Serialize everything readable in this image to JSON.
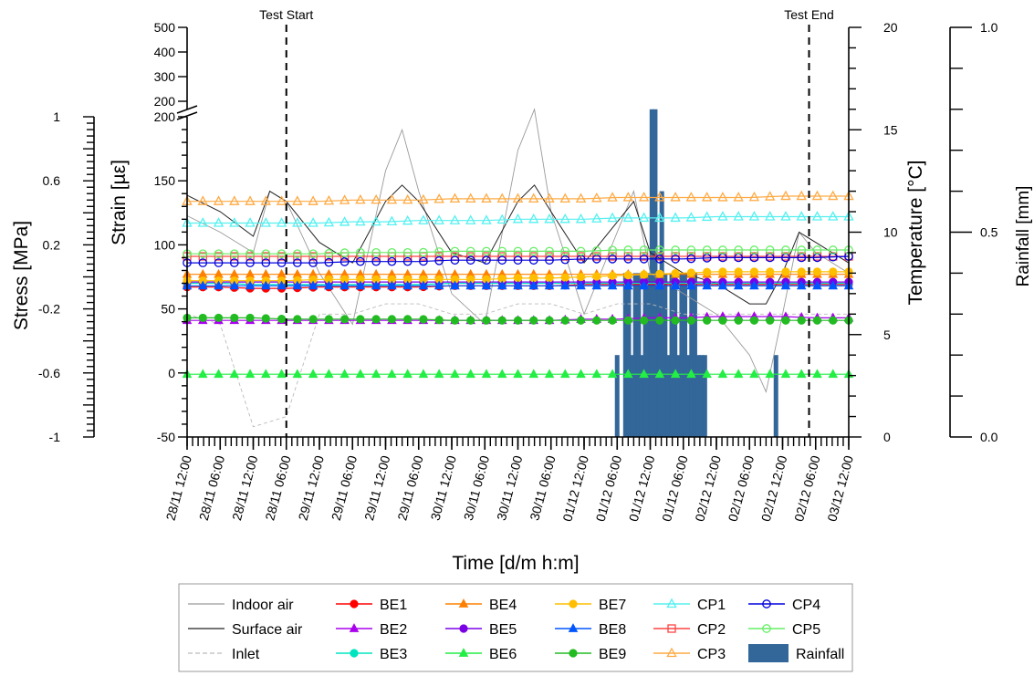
{
  "chart_data": {
    "type": "line",
    "xlabel": "Time [d/m h:m]",
    "y_stress_label": "Stress [MPa]",
    "y_strain_label": "Strain [µε]",
    "y_temp_label": "Temperature [°C]",
    "y_rain_label": "Rainfall [mm]",
    "x_ticks": [
      "28/11 12:00",
      "28/11 06:00",
      "28/11 12:00",
      "28/11 06:00",
      "29/11 12:00",
      "29/11 06:00",
      "29/11 12:00",
      "29/11 06:00",
      "30/11 12:00",
      "30/11 06:00",
      "30/11 12:00",
      "30/11 06:00",
      "01/12 12:00",
      "01/12 06:00",
      "01/12 12:00",
      "01/12 06:00",
      "02/12 12:00",
      "02/12 06:00",
      "02/12 12:00",
      "02/12 06:00",
      "03/12 12:00"
    ],
    "strain_ticks": [
      "-50",
      "0",
      "50",
      "100",
      "150",
      "200"
    ],
    "strain_break_ticks": [
      "200",
      "300",
      "400",
      "500"
    ],
    "stress_ticks": [
      "-1",
      "-0.6",
      "-0.2",
      "0.2",
      "0.6",
      "1"
    ],
    "temp_ticks": [
      "0",
      "5",
      "10",
      "15",
      "20"
    ],
    "rain_ticks": [
      "0.0",
      "0.5",
      "1.0"
    ],
    "strain_ylim": [
      -50,
      200
    ],
    "temp_ylim": [
      0,
      20
    ],
    "rain_ylim": [
      0,
      1.0
    ],
    "x_range": [
      0,
      20
    ],
    "annotations": [
      {
        "label": "Test Start",
        "x": 3.0
      },
      {
        "label": "Test End",
        "x": 18.8
      }
    ],
    "strain_series": [
      {
        "name": "BE1",
        "color": "#ff0000",
        "marker": "circle-filled",
        "values": [
          67,
          67,
          66,
          66,
          67,
          67,
          67,
          67,
          68,
          68,
          68,
          68,
          69,
          69,
          69,
          69,
          69,
          69,
          69,
          69,
          69
        ]
      },
      {
        "name": "BE2",
        "color": "#aa00ee",
        "marker": "triangle-filled",
        "values": [
          41,
          41,
          41,
          41,
          41,
          41,
          41,
          41,
          41,
          41,
          41,
          41,
          42,
          42,
          43,
          43,
          44,
          44,
          44,
          43,
          43
        ]
      },
      {
        "name": "BE3",
        "color": "#00e5c0",
        "marker": "circle-filled",
        "values": [
          70,
          70,
          69,
          69,
          69,
          69,
          69,
          69,
          70,
          70,
          70,
          70,
          70,
          70,
          70,
          70,
          70,
          70,
          70,
          70,
          70
        ]
      },
      {
        "name": "BE4",
        "color": "#ff8000",
        "marker": "triangle-filled",
        "values": [
          77,
          77,
          77,
          77,
          77,
          77,
          77,
          77,
          77,
          77,
          77,
          77,
          77,
          77,
          77,
          77,
          77,
          77,
          77,
          77,
          77
        ]
      },
      {
        "name": "BE5",
        "color": "#7a00e6",
        "marker": "circle-filled",
        "values": [
          71,
          71,
          71,
          71,
          71,
          71,
          71,
          71,
          71,
          71,
          71,
          71,
          71,
          71,
          71,
          71,
          71,
          71,
          71,
          71,
          71
        ]
      },
      {
        "name": "BE6",
        "color": "#22ee44",
        "marker": "triangle-filled",
        "values": [
          -1,
          -1,
          -1,
          -1,
          -1,
          -1,
          -1,
          -1,
          -1,
          -1,
          -1,
          -1,
          -1,
          -1,
          -1,
          -1,
          -1,
          -1,
          -1,
          -1,
          -1
        ]
      },
      {
        "name": "BE7",
        "color": "#ffbf00",
        "marker": "circle-filled",
        "values": [
          72,
          72,
          72,
          72,
          73,
          73,
          73,
          73,
          73,
          73,
          74,
          74,
          75,
          76,
          77,
          78,
          79,
          79,
          79,
          79,
          79
        ]
      },
      {
        "name": "BE8",
        "color": "#0055ff",
        "marker": "triangle-filled",
        "values": [
          68,
          68,
          68,
          68,
          68,
          68,
          68,
          68,
          68,
          68,
          68,
          68,
          68,
          68,
          68,
          68,
          68,
          68,
          68,
          68,
          68
        ]
      },
      {
        "name": "BE9",
        "color": "#22bb22",
        "marker": "circle-filled",
        "values": [
          43,
          43,
          43,
          42,
          42,
          42,
          42,
          42,
          41,
          41,
          41,
          41,
          41,
          41,
          41,
          41,
          41,
          41,
          41,
          41,
          41
        ]
      },
      {
        "name": "CP1",
        "color": "#55f0f0",
        "marker": "triangle-open",
        "values": [
          117,
          117,
          117,
          117,
          117,
          118,
          118,
          119,
          119,
          119,
          120,
          120,
          120,
          121,
          121,
          121,
          122,
          122,
          122,
          122,
          122
        ]
      },
      {
        "name": "CP2",
        "color": "#ff4444",
        "marker": "square-open",
        "values": [
          91,
          91,
          91,
          91,
          91,
          91,
          91,
          91,
          91,
          91,
          91,
          91,
          91,
          91,
          91,
          91,
          91,
          91,
          91,
          91,
          91
        ]
      },
      {
        "name": "CP3",
        "color": "#ffaa44",
        "marker": "triangle-open",
        "values": [
          134,
          134,
          134,
          134,
          134,
          135,
          135,
          135,
          136,
          136,
          136,
          136,
          136,
          137,
          137,
          137,
          137,
          137,
          138,
          138,
          138
        ]
      },
      {
        "name": "CP4",
        "color": "#0000dd",
        "marker": "circle-open",
        "values": [
          86,
          86,
          86,
          86,
          86,
          87,
          87,
          87,
          88,
          88,
          88,
          88,
          89,
          89,
          89,
          89,
          90,
          90,
          90,
          90,
          91
        ]
      },
      {
        "name": "CP5",
        "color": "#66ee66",
        "marker": "circle-open",
        "values": [
          93,
          93,
          93,
          93,
          93,
          94,
          94,
          94,
          95,
          95,
          95,
          95,
          95,
          96,
          96,
          96,
          96,
          96,
          96,
          96,
          96
        ]
      }
    ],
    "temperature_series": [
      {
        "name": "Indoor air",
        "color": "#999999",
        "x": [
          0,
          1,
          2,
          2.5,
          3,
          4,
          5,
          6,
          6.5,
          7,
          8,
          9,
          10,
          10.5,
          11,
          12,
          13,
          13.5,
          14,
          15,
          16,
          17,
          17.5,
          18,
          18.5,
          19,
          20
        ],
        "values": [
          10.8,
          10,
          9,
          12,
          11.5,
          8,
          5.5,
          13,
          15,
          12,
          7,
          5.5,
          14,
          16,
          11,
          6,
          10,
          12,
          8,
          7,
          6,
          4,
          2.2,
          6,
          10,
          9,
          8
        ]
      },
      {
        "name": "Surface air",
        "color": "#222222",
        "x": [
          0,
          1,
          2,
          2.5,
          3,
          4,
          5,
          6,
          6.5,
          7,
          8,
          9,
          10,
          10.5,
          11,
          12,
          13,
          13.5,
          14,
          15,
          16,
          17,
          17.5,
          18,
          18.5,
          19,
          20
        ],
        "values": [
          11.8,
          11,
          9.8,
          12,
          11.5,
          9.5,
          8.5,
          11.5,
          12.3,
          11.5,
          9,
          8.5,
          11.5,
          12.3,
          11,
          8.5,
          10.5,
          11.5,
          9,
          8,
          7.5,
          6.5,
          6.5,
          8,
          10,
          9.5,
          8.5
        ]
      },
      {
        "name": "Inlet",
        "color": "#bbbbbb",
        "x": [
          0,
          1,
          2,
          3,
          4,
          5,
          6,
          7,
          8,
          9,
          10,
          11,
          12,
          13,
          14,
          15,
          16,
          17,
          18,
          19,
          20
        ],
        "values": [
          6,
          5.5,
          0.5,
          1,
          6,
          6,
          6.5,
          6.5,
          6,
          6,
          6.5,
          6.5,
          6,
          6.5,
          6.5,
          6,
          6,
          6,
          6,
          6,
          6
        ]
      }
    ],
    "rainfall": {
      "name": "Rainfall",
      "color": "#336699",
      "x": [
        13.0,
        13.25,
        13.35,
        13.45,
        13.55,
        13.65,
        13.75,
        13.85,
        13.95,
        14.05,
        14.15,
        14.25,
        14.35,
        14.45,
        14.55,
        14.65,
        14.75,
        14.85,
        14.95,
        15.05,
        15.15,
        15.25,
        15.35,
        15.45,
        15.55,
        15.65,
        17.8
      ],
      "values": [
        0.2,
        0.4,
        0.4,
        0.2,
        0.4,
        0.4,
        0.2,
        0.4,
        0.4,
        0.8,
        0.8,
        0.4,
        0.6,
        0.4,
        0.2,
        0.4,
        0.4,
        0.2,
        0.4,
        0.4,
        0.2,
        0.4,
        0.4,
        0.2,
        0.2,
        0.2,
        0.2
      ]
    },
    "legend": [
      [
        "Indoor air",
        "BE1",
        "BE4",
        "BE7",
        "CP1",
        "CP4"
      ],
      [
        "Surface air",
        "BE2",
        "BE5",
        "BE8",
        "CP2",
        "CP5"
      ],
      [
        "Inlet",
        "BE3",
        "BE6",
        "BE9",
        "CP3",
        "Rainfall"
      ]
    ]
  }
}
